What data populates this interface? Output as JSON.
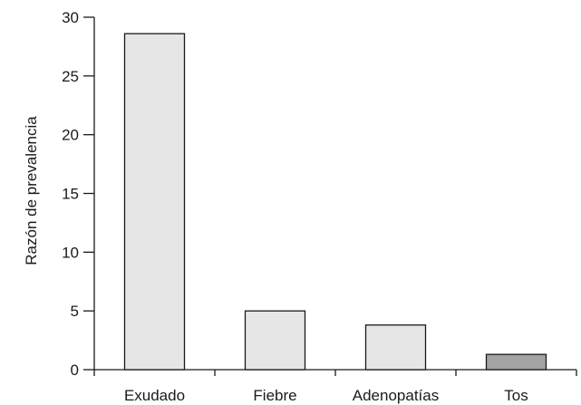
{
  "chart_data": {
    "type": "bar",
    "categories": [
      "Exudado",
      "Fiebre",
      "Adenopatías",
      "Tos"
    ],
    "values": [
      28.6,
      5.0,
      3.8,
      1.3
    ],
    "bar_colors": [
      "#e6e6e6",
      "#e6e6e6",
      "#e6e6e6",
      "#a3a3a3"
    ],
    "bar_stroke": "#1a1a1a",
    "title": "",
    "xlabel": "",
    "ylabel": "Razón de prevalencia",
    "ylim": [
      0,
      30
    ],
    "yticks": [
      0,
      5,
      10,
      15,
      20,
      25,
      30
    ],
    "grid": false,
    "legend": null
  }
}
